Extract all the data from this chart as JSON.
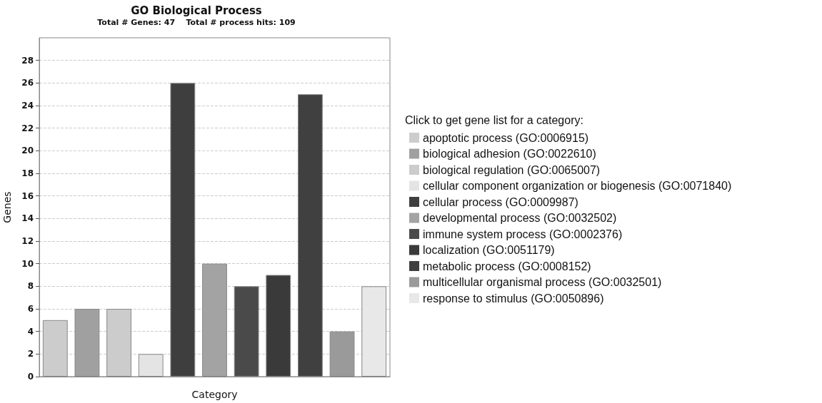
{
  "chart_data": {
    "type": "bar",
    "title": "GO Biological Process",
    "subtitle": "Total # Genes: 47    Total # process hits: 109",
    "xlabel": "Category",
    "ylabel": "Genes",
    "legend_title": "Click to get gene list for a category:",
    "categories": [
      null,
      null,
      null,
      null,
      null,
      null,
      null,
      null,
      null,
      null,
      null
    ],
    "series": [
      {
        "name": "apoptotic process (GO:0006915)",
        "color": "#cccccc",
        "values": [
          5,
          null,
          null,
          null,
          null,
          null,
          null,
          null,
          null,
          null,
          null
        ]
      },
      {
        "name": "biological adhesion (GO:0022610)",
        "color": "#a0a0a0",
        "values": [
          null,
          6,
          null,
          null,
          null,
          null,
          null,
          null,
          null,
          null,
          null
        ]
      },
      {
        "name": "biological regulation (GO:0065007)",
        "color": "#cccccc",
        "values": [
          null,
          null,
          6,
          null,
          null,
          null,
          null,
          null,
          null,
          null,
          null
        ]
      },
      {
        "name": "cellular component organization or biogenesis (GO:0071840)",
        "color": "#e4e4e4",
        "values": [
          null,
          null,
          null,
          2,
          null,
          null,
          null,
          null,
          null,
          null,
          null
        ]
      },
      {
        "name": "cellular process (GO:0009987)",
        "color": "#3e3e3e",
        "values": [
          null,
          null,
          null,
          null,
          26,
          null,
          null,
          null,
          null,
          null,
          null
        ]
      },
      {
        "name": "developmental process (GO:0032502)",
        "color": "#a3a3a3",
        "values": [
          null,
          null,
          null,
          null,
          null,
          10,
          null,
          null,
          null,
          null,
          null
        ]
      },
      {
        "name": "immune system process (GO:0002376)",
        "color": "#4a4a4a",
        "values": [
          null,
          null,
          null,
          null,
          null,
          null,
          8,
          null,
          null,
          null,
          null
        ]
      },
      {
        "name": "localization (GO:0051179)",
        "color": "#3a3a3a",
        "values": [
          null,
          null,
          null,
          null,
          null,
          null,
          null,
          9,
          null,
          null,
          null
        ]
      },
      {
        "name": "metabolic process (GO:0008152)",
        "color": "#404040",
        "values": [
          null,
          null,
          null,
          null,
          null,
          null,
          null,
          null,
          25,
          null,
          null
        ]
      },
      {
        "name": "multicellular organismal process (GO:0032501)",
        "color": "#9a9a9a",
        "values": [
          null,
          null,
          null,
          null,
          null,
          null,
          null,
          null,
          null,
          4,
          null
        ]
      },
      {
        "name": "response to stimulus (GO:0050896)",
        "color": "#e8e8e8",
        "values": [
          null,
          null,
          null,
          null,
          null,
          null,
          null,
          null,
          null,
          null,
          8
        ]
      }
    ],
    "ylim": [
      0,
      30
    ],
    "yticks": [
      0,
      2,
      4,
      6,
      8,
      10,
      12,
      14,
      16,
      18,
      20,
      22,
      24,
      26,
      28
    ],
    "grid": "y",
    "legend": "right",
    "tick_labels": "y"
  }
}
